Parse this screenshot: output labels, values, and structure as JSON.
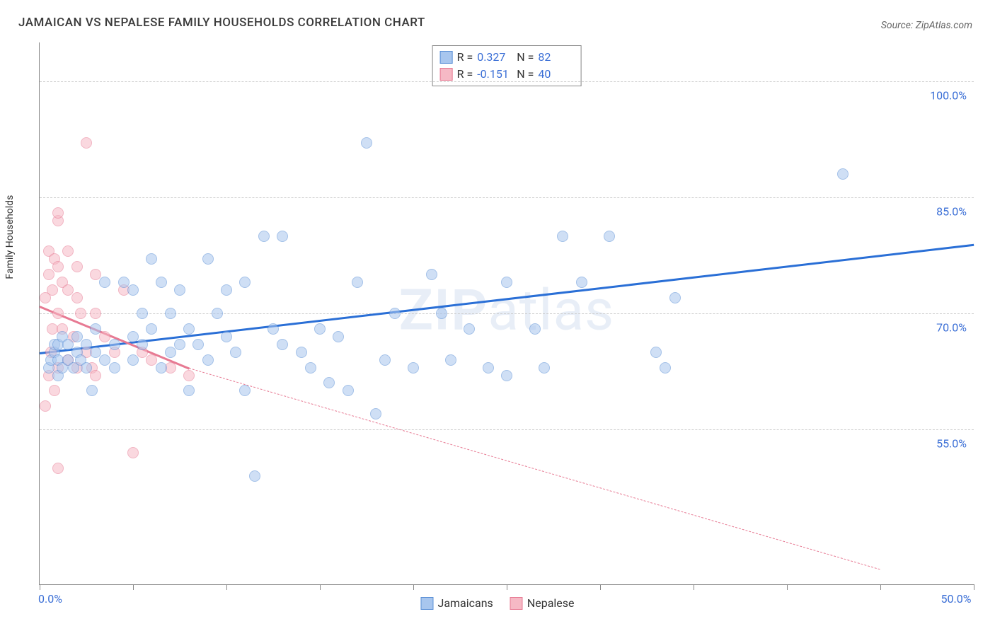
{
  "title": "JAMAICAN VS NEPALESE FAMILY HOUSEHOLDS CORRELATION CHART",
  "source_prefix": "Source: ",
  "source": "ZipAtlas.com",
  "ylabel": "Family Households",
  "watermark": {
    "bold": "ZIP",
    "rest": "atlas"
  },
  "stats": {
    "r_label": "R =",
    "n_label": "N ="
  },
  "xlim": [
    0,
    50
  ],
  "ylim": [
    35,
    105
  ],
  "x_ticks": [
    0,
    5,
    10,
    15,
    20,
    25,
    30,
    35,
    40,
    45,
    50
  ],
  "x_tick_labels": {
    "0": "0.0%",
    "50": "50.0%"
  },
  "y_gridlines": [
    55,
    70,
    85,
    100
  ],
  "y_tick_labels": {
    "55": "55.0%",
    "70": "70.0%",
    "85": "85.0%",
    "100": "100.0%"
  },
  "grid_color": "#cccccc",
  "axis_color": "#888888",
  "tick_label_color": "#3b6fd6",
  "background_color": "#ffffff",
  "point_radius": 8,
  "point_opacity": 0.55,
  "series": [
    {
      "name": "Jamaicans",
      "r": "0.327",
      "n": "82",
      "fill": "#a8c6ee",
      "stroke": "#5a8fd6",
      "trend": {
        "x1": 0,
        "y1": 65,
        "x2": 50,
        "y2": 79,
        "color": "#2a6fd6",
        "width": 3,
        "dash": "solid"
      },
      "points": [
        [
          0.5,
          63
        ],
        [
          0.6,
          64
        ],
        [
          0.8,
          65
        ],
        [
          0.8,
          66
        ],
        [
          1.0,
          62
        ],
        [
          1.0,
          64
        ],
        [
          1.0,
          66
        ],
        [
          1.2,
          63
        ],
        [
          1.2,
          67
        ],
        [
          1.5,
          64
        ],
        [
          1.5,
          66
        ],
        [
          1.8,
          63
        ],
        [
          2.0,
          65
        ],
        [
          2.0,
          67
        ],
        [
          2.2,
          64
        ],
        [
          2.5,
          66
        ],
        [
          2.5,
          63
        ],
        [
          2.8,
          60
        ],
        [
          3.0,
          65
        ],
        [
          3.0,
          68
        ],
        [
          3.5,
          74
        ],
        [
          3.5,
          64
        ],
        [
          4.0,
          66
        ],
        [
          4.0,
          63
        ],
        [
          4.5,
          74
        ],
        [
          5.0,
          67
        ],
        [
          5.0,
          73
        ],
        [
          5.0,
          64
        ],
        [
          5.5,
          66
        ],
        [
          5.5,
          70
        ],
        [
          6.0,
          77
        ],
        [
          6.0,
          68
        ],
        [
          6.5,
          63
        ],
        [
          6.5,
          74
        ],
        [
          7.0,
          70
        ],
        [
          7.0,
          65
        ],
        [
          7.5,
          66
        ],
        [
          7.5,
          73
        ],
        [
          8.0,
          60
        ],
        [
          8.0,
          68
        ],
        [
          8.5,
          66
        ],
        [
          9.0,
          64
        ],
        [
          9.0,
          77
        ],
        [
          9.5,
          70
        ],
        [
          10.0,
          67
        ],
        [
          10.0,
          73
        ],
        [
          10.5,
          65
        ],
        [
          11.0,
          60
        ],
        [
          11.0,
          74
        ],
        [
          11.5,
          49
        ],
        [
          12.0,
          80
        ],
        [
          12.5,
          68
        ],
        [
          13.0,
          80
        ],
        [
          13.0,
          66
        ],
        [
          14.0,
          65
        ],
        [
          14.5,
          63
        ],
        [
          15.0,
          68
        ],
        [
          15.5,
          61
        ],
        [
          16.0,
          67
        ],
        [
          16.5,
          60
        ],
        [
          17.0,
          74
        ],
        [
          17.5,
          92
        ],
        [
          18.0,
          57
        ],
        [
          18.5,
          64
        ],
        [
          19.0,
          70
        ],
        [
          20.0,
          63
        ],
        [
          21.0,
          75
        ],
        [
          21.5,
          70
        ],
        [
          22.0,
          64
        ],
        [
          23.0,
          68
        ],
        [
          24.0,
          63
        ],
        [
          25.0,
          62
        ],
        [
          25.0,
          74
        ],
        [
          26.5,
          68
        ],
        [
          27.0,
          63
        ],
        [
          28.0,
          80
        ],
        [
          29.0,
          74
        ],
        [
          33.0,
          65
        ],
        [
          33.5,
          63
        ],
        [
          34.0,
          72
        ],
        [
          43.0,
          88
        ],
        [
          30.5,
          80
        ]
      ]
    },
    {
      "name": "Nepalese",
      "r": "-0.151",
      "n": "40",
      "fill": "#f6b9c5",
      "stroke": "#e77a93",
      "trend": {
        "x1": 0,
        "y1": 71,
        "x2": 8,
        "y2": 63,
        "color": "#e77a93",
        "width": 3,
        "dash": "solid",
        "ext_x2": 45,
        "ext_y2": 37,
        "ext_dash": "6 5",
        "ext_width": 1.5
      },
      "points": [
        [
          0.3,
          58
        ],
        [
          0.3,
          72
        ],
        [
          0.5,
          62
        ],
        [
          0.5,
          75
        ],
        [
          0.5,
          78
        ],
        [
          0.6,
          65
        ],
        [
          0.7,
          73
        ],
        [
          0.7,
          68
        ],
        [
          0.8,
          60
        ],
        [
          0.8,
          77
        ],
        [
          1.0,
          82
        ],
        [
          1.0,
          83
        ],
        [
          1.0,
          76
        ],
        [
          1.0,
          70
        ],
        [
          1.0,
          63
        ],
        [
          1.0,
          50
        ],
        [
          1.2,
          74
        ],
        [
          1.2,
          68
        ],
        [
          1.5,
          64
        ],
        [
          1.5,
          78
        ],
        [
          1.5,
          73
        ],
        [
          1.8,
          67
        ],
        [
          2.0,
          72
        ],
        [
          2.0,
          63
        ],
        [
          2.0,
          76
        ],
        [
          2.2,
          70
        ],
        [
          2.5,
          65
        ],
        [
          2.5,
          92
        ],
        [
          2.8,
          63
        ],
        [
          3.0,
          75
        ],
        [
          3.0,
          70
        ],
        [
          3.0,
          62
        ],
        [
          3.5,
          67
        ],
        [
          4.0,
          65
        ],
        [
          4.5,
          73
        ],
        [
          5.0,
          52
        ],
        [
          5.5,
          65
        ],
        [
          6.0,
          64
        ],
        [
          7.0,
          63
        ],
        [
          8.0,
          62
        ]
      ]
    }
  ]
}
